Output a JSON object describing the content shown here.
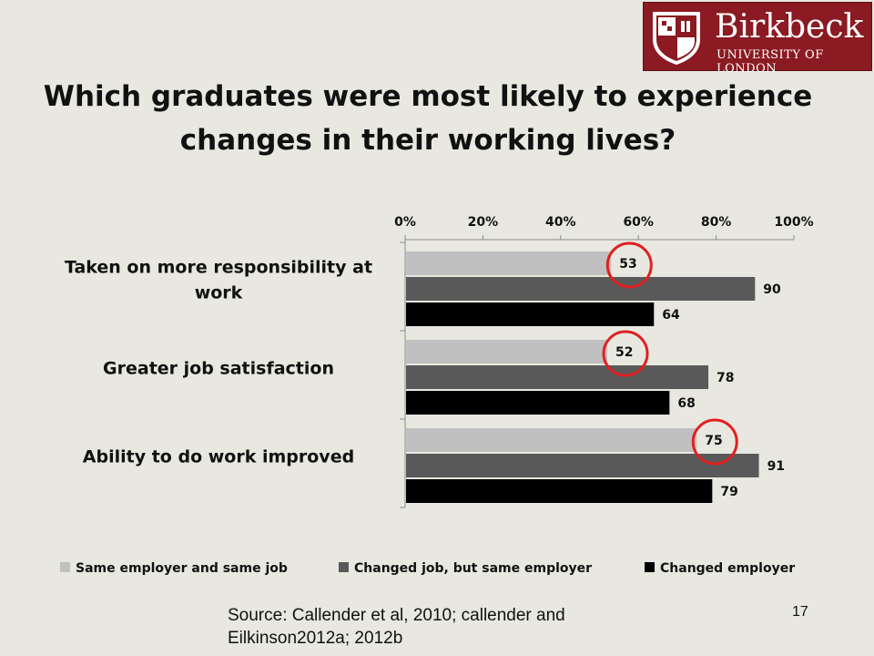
{
  "slide": {
    "title": "Which graduates were most likely to experience changes in their working lives?",
    "source": "Source: Callender et al, 2010; callender and Eilkinson2012a; 2012b",
    "page_number": "17"
  },
  "logo": {
    "name": "Birkbeck",
    "subtitle": "UNIVERSITY OF LONDON",
    "color": "#8b1a22"
  },
  "chart_data": {
    "type": "bar",
    "orientation": "horizontal",
    "title": "",
    "xlabel": "",
    "ylabel": "",
    "xlim": [
      0,
      100
    ],
    "axis_position": "top",
    "x_ticks": [
      "0%",
      "20%",
      "40%",
      "60%",
      "80%",
      "100%"
    ],
    "grid": false,
    "legend_position": "bottom",
    "categories": [
      "Taken on more responsibility at work",
      "Greater job satisfaction",
      "Ability to do work improved"
    ],
    "series": [
      {
        "name": "Same employer and same job",
        "color": "#c0c0c0",
        "values": [
          53,
          52,
          75
        ]
      },
      {
        "name": "Changed job, but same employer",
        "color": "#595959",
        "values": [
          90,
          78,
          91
        ]
      },
      {
        "name": "Changed employer",
        "color": "#000000",
        "values": [
          64,
          68,
          79
        ]
      }
    ],
    "highlight": {
      "series": 0,
      "color": "#e02020"
    }
  }
}
